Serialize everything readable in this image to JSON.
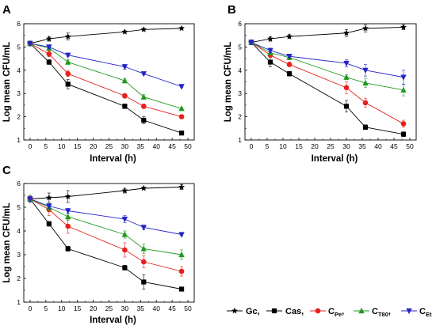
{
  "legend": {
    "entries": [
      {
        "label": "Gc,",
        "sub": "",
        "after": ""
      },
      {
        "label": "Cas,",
        "sub": "",
        "after": ""
      },
      {
        "label": "C",
        "sub": "Pe",
        "after": ","
      },
      {
        "label": "C",
        "sub": "T80",
        "after": ","
      },
      {
        "label": "C",
        "sub": "Et",
        "after": ""
      }
    ]
  },
  "chart_data": [
    {
      "type": "line",
      "panel_label": "A",
      "xlabel": "Interval (h)",
      "ylabel": "Log mean CFU/mL",
      "xlim": [
        -2,
        52
      ],
      "ylim": [
        1,
        6
      ],
      "x_ticks": [
        "0",
        "5",
        "10",
        "15",
        "20",
        "25",
        "30",
        "35",
        "40",
        "45",
        "50"
      ],
      "y_ticks": [
        "1",
        "2",
        "3",
        "4",
        "5",
        "6"
      ],
      "x": [
        0,
        6,
        12,
        30,
        36,
        48
      ],
      "series": [
        {
          "name": "Gc",
          "color": "#000000",
          "marker": "star",
          "values": [
            5.15,
            5.35,
            5.45,
            5.65,
            5.75,
            5.8
          ],
          "errors": [
            0.1,
            0.1,
            0.15,
            0.05,
            0.05,
            0.05
          ]
        },
        {
          "name": "Cas",
          "color": "#000000",
          "marker": "square",
          "values": [
            5.15,
            4.35,
            3.4,
            2.45,
            1.85,
            1.3
          ],
          "errors": [
            0.1,
            0.1,
            0.2,
            0.1,
            0.15,
            0.05
          ]
        },
        {
          "name": "CPe",
          "color": "#e8201c",
          "marker": "circle",
          "values": [
            5.15,
            4.7,
            3.85,
            2.9,
            2.45,
            2.0
          ],
          "errors": [
            0.1,
            0.12,
            0.12,
            0.1,
            0.1,
            0.05
          ]
        },
        {
          "name": "CT80",
          "color": "#1f9a1f",
          "marker": "triangle-up",
          "values": [
            5.15,
            4.95,
            4.35,
            3.55,
            2.85,
            2.35
          ],
          "errors": [
            0.1,
            0.05,
            0.1,
            0.1,
            0.1,
            0.05
          ]
        },
        {
          "name": "CEt",
          "color": "#2424c8",
          "marker": "triangle-down",
          "values": [
            5.15,
            5.0,
            4.65,
            4.15,
            3.85,
            3.3
          ],
          "errors": [
            0.1,
            0.05,
            0.05,
            0.1,
            0.05,
            0.05
          ]
        }
      ]
    },
    {
      "type": "line",
      "panel_label": "B",
      "xlabel": "Interval (h)",
      "ylabel": "Log mean CFU/mL",
      "xlim": [
        -2,
        52
      ],
      "ylim": [
        1,
        6
      ],
      "x_ticks": [
        "0",
        "5",
        "10",
        "15",
        "20",
        "25",
        "30",
        "35",
        "40",
        "45",
        "50"
      ],
      "y_ticks": [
        "1",
        "2",
        "3",
        "4",
        "5",
        "6"
      ],
      "x": [
        0,
        6,
        12,
        30,
        36,
        48
      ],
      "series": [
        {
          "name": "Gc",
          "color": "#000000",
          "marker": "star",
          "values": [
            5.2,
            5.35,
            5.45,
            5.6,
            5.8,
            5.85
          ],
          "errors": [
            0.1,
            0.1,
            0.08,
            0.15,
            0.15,
            0.1
          ]
        },
        {
          "name": "Cas",
          "color": "#000000",
          "marker": "square",
          "values": [
            5.2,
            4.35,
            3.85,
            2.45,
            1.55,
            1.25
          ],
          "errors": [
            0.1,
            0.2,
            0.1,
            0.25,
            0.1,
            0.1
          ]
        },
        {
          "name": "CPe",
          "color": "#e8201c",
          "marker": "circle",
          "values": [
            5.2,
            4.65,
            4.25,
            3.25,
            2.6,
            1.7
          ],
          "errors": [
            0.1,
            0.1,
            0.1,
            0.25,
            0.2,
            0.15
          ]
        },
        {
          "name": "CT80",
          "color": "#1f9a1f",
          "marker": "triangle-up",
          "values": [
            5.2,
            4.75,
            4.55,
            3.7,
            3.45,
            3.15
          ],
          "errors": [
            0.1,
            0.1,
            0.1,
            0.1,
            0.2,
            0.25
          ]
        },
        {
          "name": "CEt",
          "color": "#2424c8",
          "marker": "triangle-down",
          "values": [
            5.2,
            4.85,
            4.6,
            4.3,
            4.0,
            3.7
          ],
          "errors": [
            0.1,
            0.1,
            0.05,
            0.15,
            0.25,
            0.3
          ]
        }
      ]
    },
    {
      "type": "line",
      "panel_label": "C",
      "xlabel": "Interval (h)",
      "ylabel": "Log mean CFU/mL",
      "xlim": [
        -2,
        52
      ],
      "ylim": [
        1,
        6
      ],
      "x_ticks": [
        "0",
        "5",
        "10",
        "15",
        "20",
        "25",
        "30",
        "35",
        "40",
        "45",
        "50"
      ],
      "y_ticks": [
        "1",
        "2",
        "3",
        "4",
        "5",
        "6"
      ],
      "x": [
        0,
        6,
        12,
        30,
        36,
        48
      ],
      "series": [
        {
          "name": "Gc",
          "color": "#000000",
          "marker": "star",
          "values": [
            5.35,
            5.4,
            5.45,
            5.7,
            5.8,
            5.85
          ],
          "errors": [
            0.15,
            0.2,
            0.25,
            0.1,
            0.05,
            0.1
          ]
        },
        {
          "name": "Cas",
          "color": "#000000",
          "marker": "square",
          "values": [
            5.35,
            4.3,
            3.25,
            2.45,
            1.85,
            1.55
          ],
          "errors": [
            0.1,
            0.1,
            0.1,
            0.1,
            0.3,
            0.05
          ]
        },
        {
          "name": "CPe",
          "color": "#e8201c",
          "marker": "circle",
          "values": [
            5.35,
            4.9,
            4.2,
            3.2,
            2.7,
            2.3
          ],
          "errors": [
            0.1,
            0.25,
            0.3,
            0.3,
            0.25,
            0.2
          ]
        },
        {
          "name": "CT80",
          "color": "#1f9a1f",
          "marker": "triangle-up",
          "values": [
            5.35,
            5.0,
            4.6,
            3.85,
            3.25,
            3.0
          ],
          "errors": [
            0.1,
            0.15,
            0.15,
            0.15,
            0.2,
            0.2
          ]
        },
        {
          "name": "CEt",
          "color": "#2424c8",
          "marker": "triangle-down",
          "values": [
            5.35,
            5.05,
            4.85,
            4.5,
            4.15,
            3.85
          ],
          "errors": [
            0.1,
            0.1,
            0.1,
            0.15,
            0.1,
            0.05
          ]
        }
      ]
    }
  ]
}
